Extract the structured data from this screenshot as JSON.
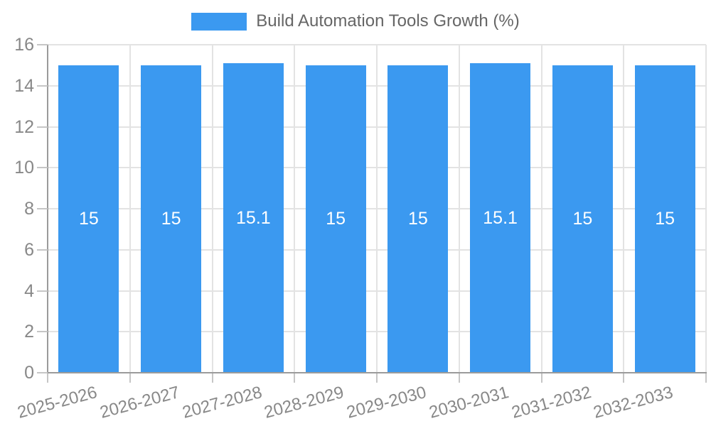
{
  "legend": {
    "label": "Build Automation Tools Growth (%)"
  },
  "colors": {
    "bar": "#3B99F0",
    "grid": "#E3E3E3",
    "axis": "#9B9B9B",
    "tick": "#C6C6C6",
    "tick_label": "#888888",
    "legend_label": "#666666",
    "bar_label": "#FFFFFF",
    "background": "#FFFFFF"
  },
  "chart_data": {
    "type": "bar",
    "title": "Build Automation Tools Growth (%)",
    "categories": [
      "2025-2026",
      "2026-2027",
      "2027-2028",
      "2028-2029",
      "2029-2030",
      "2030-2031",
      "2031-2032",
      "2032-2033"
    ],
    "values": [
      15,
      15,
      15.1,
      15,
      15,
      15.1,
      15,
      15
    ],
    "bar_value_labels": [
      "15",
      "15",
      "15.1",
      "15",
      "15",
      "15.1",
      "15",
      "15"
    ],
    "xlabel": "",
    "ylabel": "",
    "ylim": [
      0,
      16
    ],
    "ytick_step": 2,
    "ytick_labels": [
      "0",
      "2",
      "4",
      "6",
      "8",
      "10",
      "12",
      "14",
      "16"
    ],
    "grid": true,
    "legend_position": "top",
    "bar_labels_visible": true,
    "x_label_rotation_deg": -15
  }
}
